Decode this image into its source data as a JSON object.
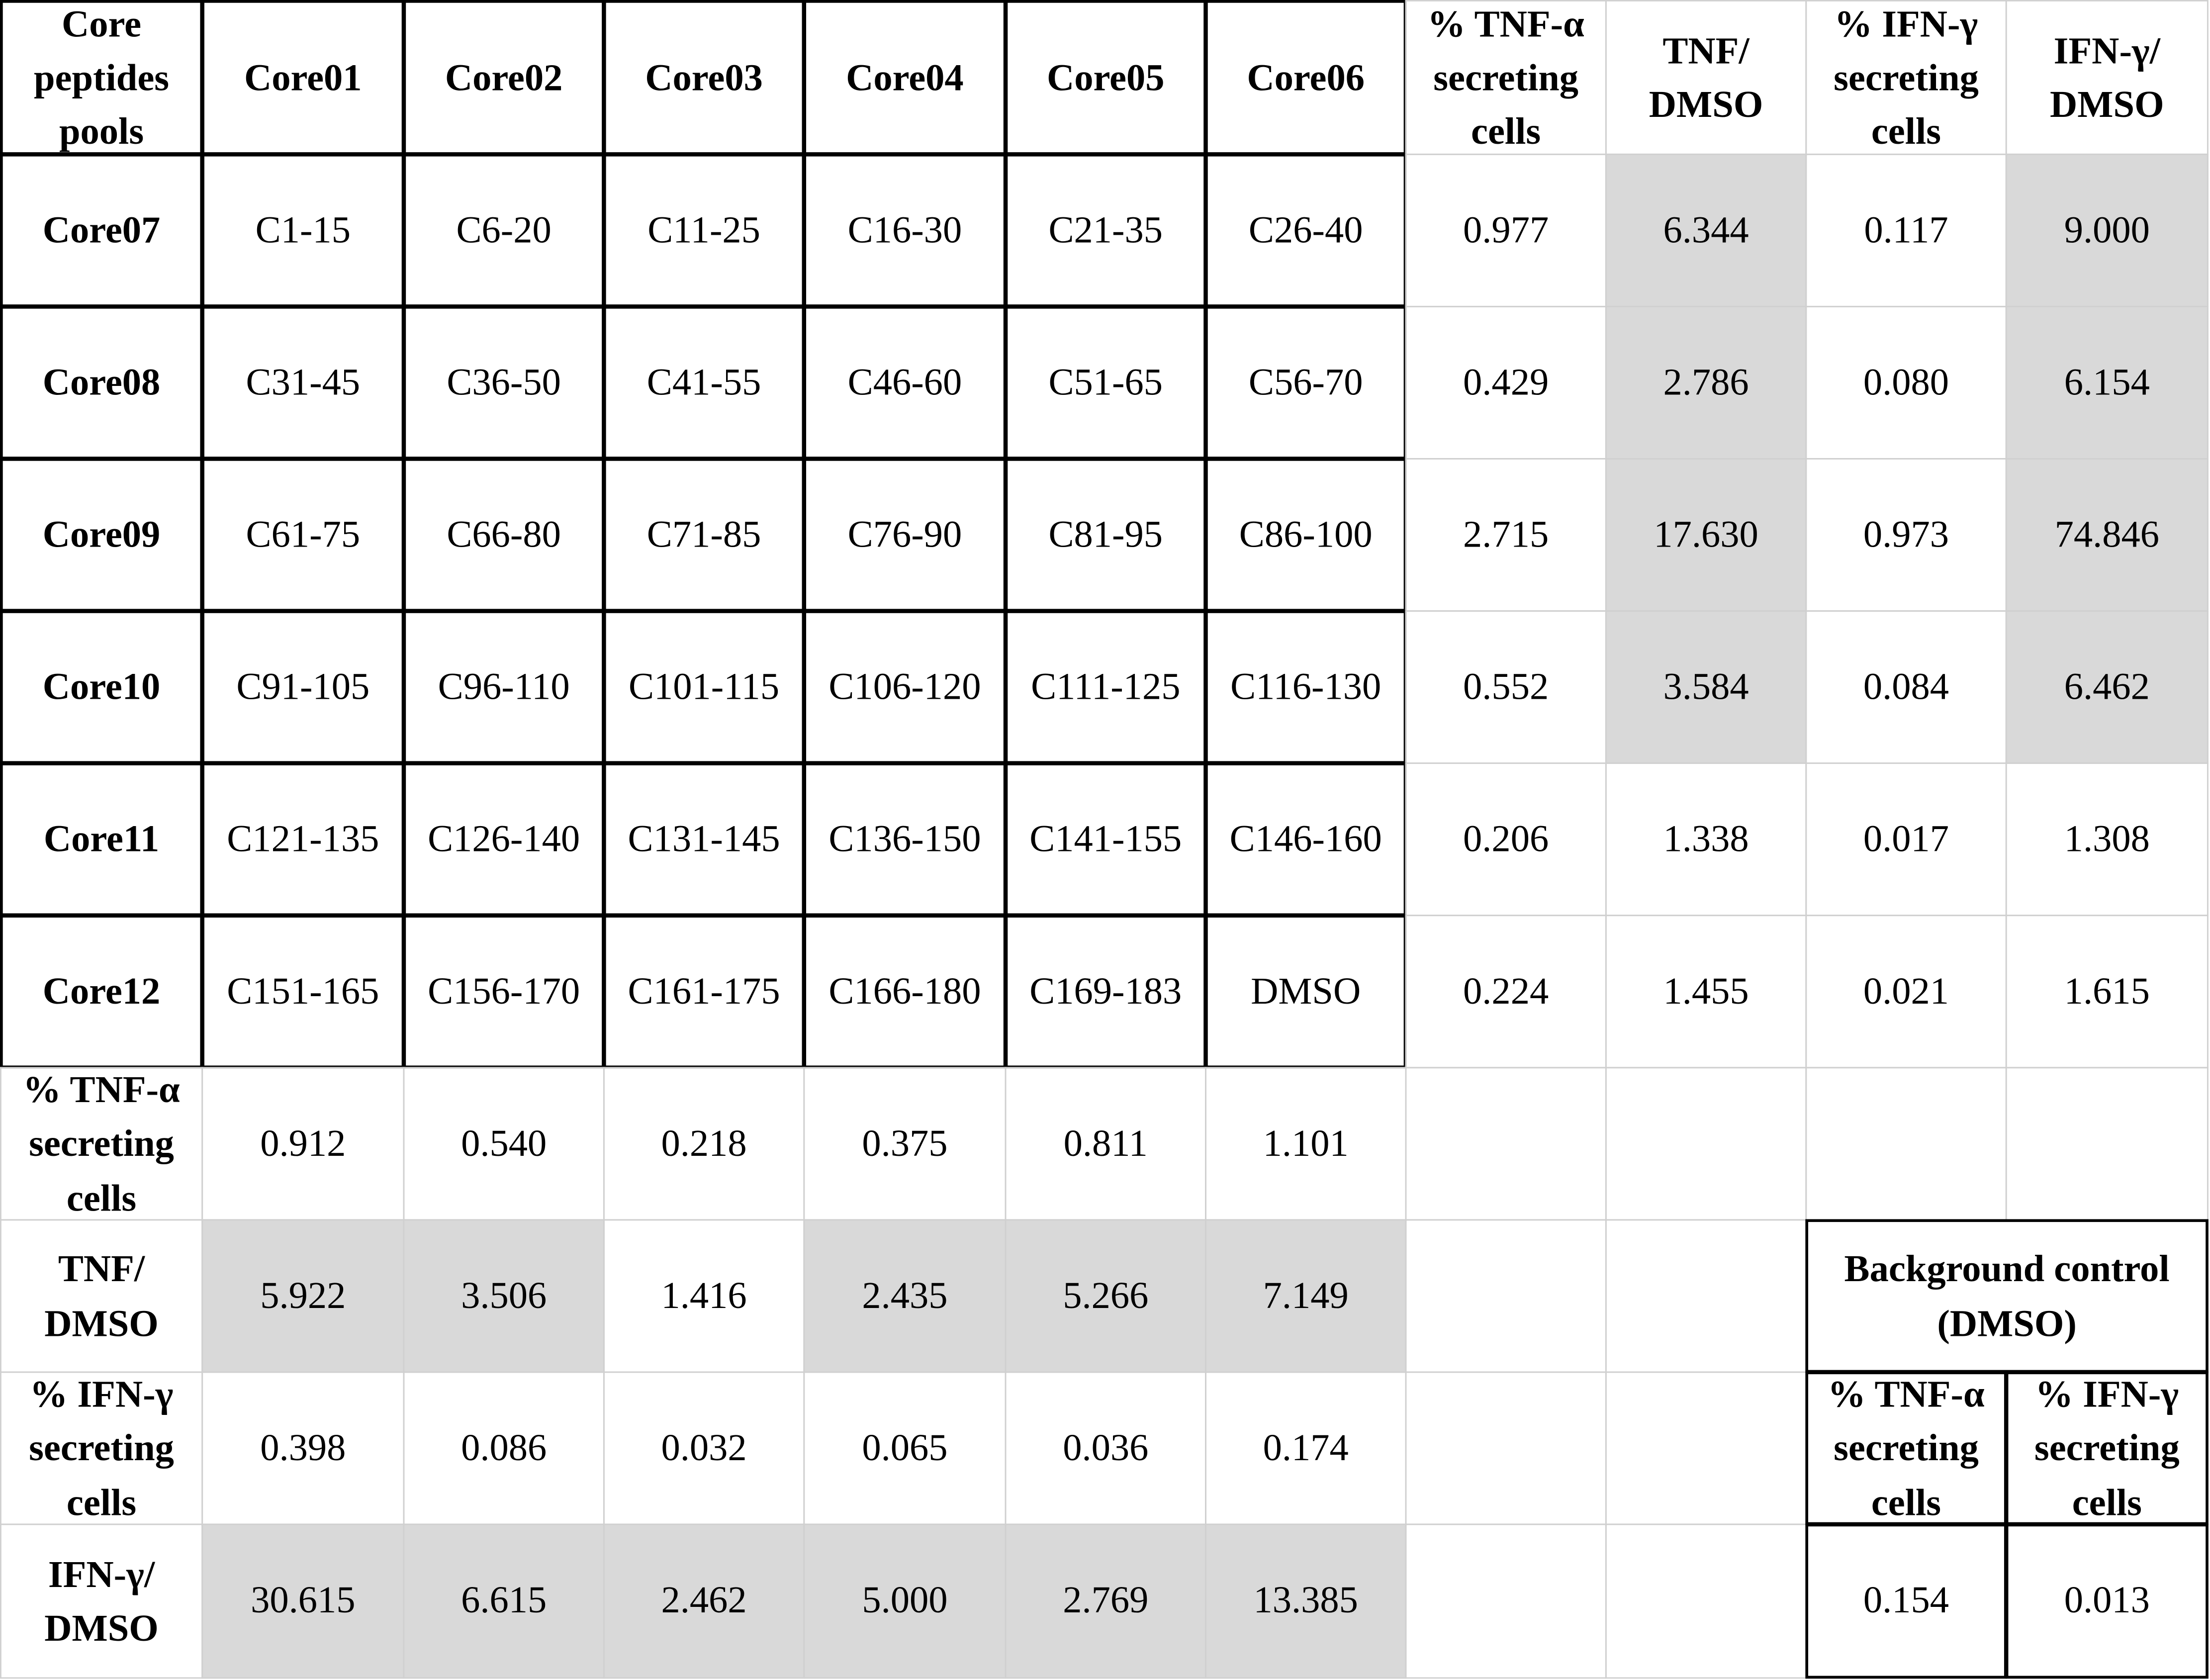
{
  "table": {
    "header": [
      "Core peptides pools",
      "Core01",
      "Core02",
      "Core03",
      "Core04",
      "Core05",
      "Core06",
      "% TNF-α secreting cells",
      "TNF/ DMSO",
      "% IFN-γ secreting cells",
      "IFN-γ/ DMSO"
    ],
    "rows": [
      [
        "Core07",
        "C1-15",
        "C6-20",
        "C11-25",
        "C16-30",
        "C21-35",
        "C26-40",
        "0.977",
        "6.344",
        "0.117",
        "9.000"
      ],
      [
        "Core08",
        "C31-45",
        "C36-50",
        "C41-55",
        "C46-60",
        "C51-65",
        "C56-70",
        "0.429",
        "2.786",
        "0.080",
        "6.154"
      ],
      [
        "Core09",
        "C61-75",
        "C66-80",
        "C71-85",
        "C76-90",
        "C81-95",
        "C86-100",
        "2.715",
        "17.630",
        "0.973",
        "74.846"
      ],
      [
        "Core10",
        "C91-105",
        "C96-110",
        "C101-115",
        "C106-120",
        "C111-125",
        "C116-130",
        "0.552",
        "3.584",
        "0.084",
        "6.462"
      ],
      [
        "Core11",
        "C121-135",
        "C126-140",
        "C131-145",
        "C136-150",
        "C141-155",
        "C146-160",
        "0.206",
        "1.338",
        "0.017",
        "1.308"
      ],
      [
        "Core12",
        "C151-165",
        "C156-170",
        "C161-175",
        "C166-180",
        "C169-183",
        "DMSO",
        "0.224",
        "1.455",
        "0.021",
        "1.615"
      ]
    ],
    "summary_rows": [
      [
        "% TNF-α secreting cells",
        "0.912",
        "0.540",
        "0.218",
        "0.375",
        "0.811",
        "1.101"
      ],
      [
        "TNF/ DMSO",
        "5.922",
        "3.506",
        "1.416",
        "2.435",
        "5.266",
        "7.149"
      ],
      [
        "% IFN-γ secreting cells",
        "0.398",
        "0.086",
        "0.032",
        "0.065",
        "0.036",
        "0.174"
      ],
      [
        "IFN-γ/ DMSO",
        "30.615",
        "6.615",
        "2.462",
        "5.000",
        "2.769",
        "13.385"
      ]
    ]
  },
  "background_control": {
    "title": "Background control (DMSO)",
    "headers": [
      "% TNF-α secreting cells",
      "% IFN-γ secreting cells"
    ],
    "values": [
      "0.154",
      "0.013"
    ]
  }
}
